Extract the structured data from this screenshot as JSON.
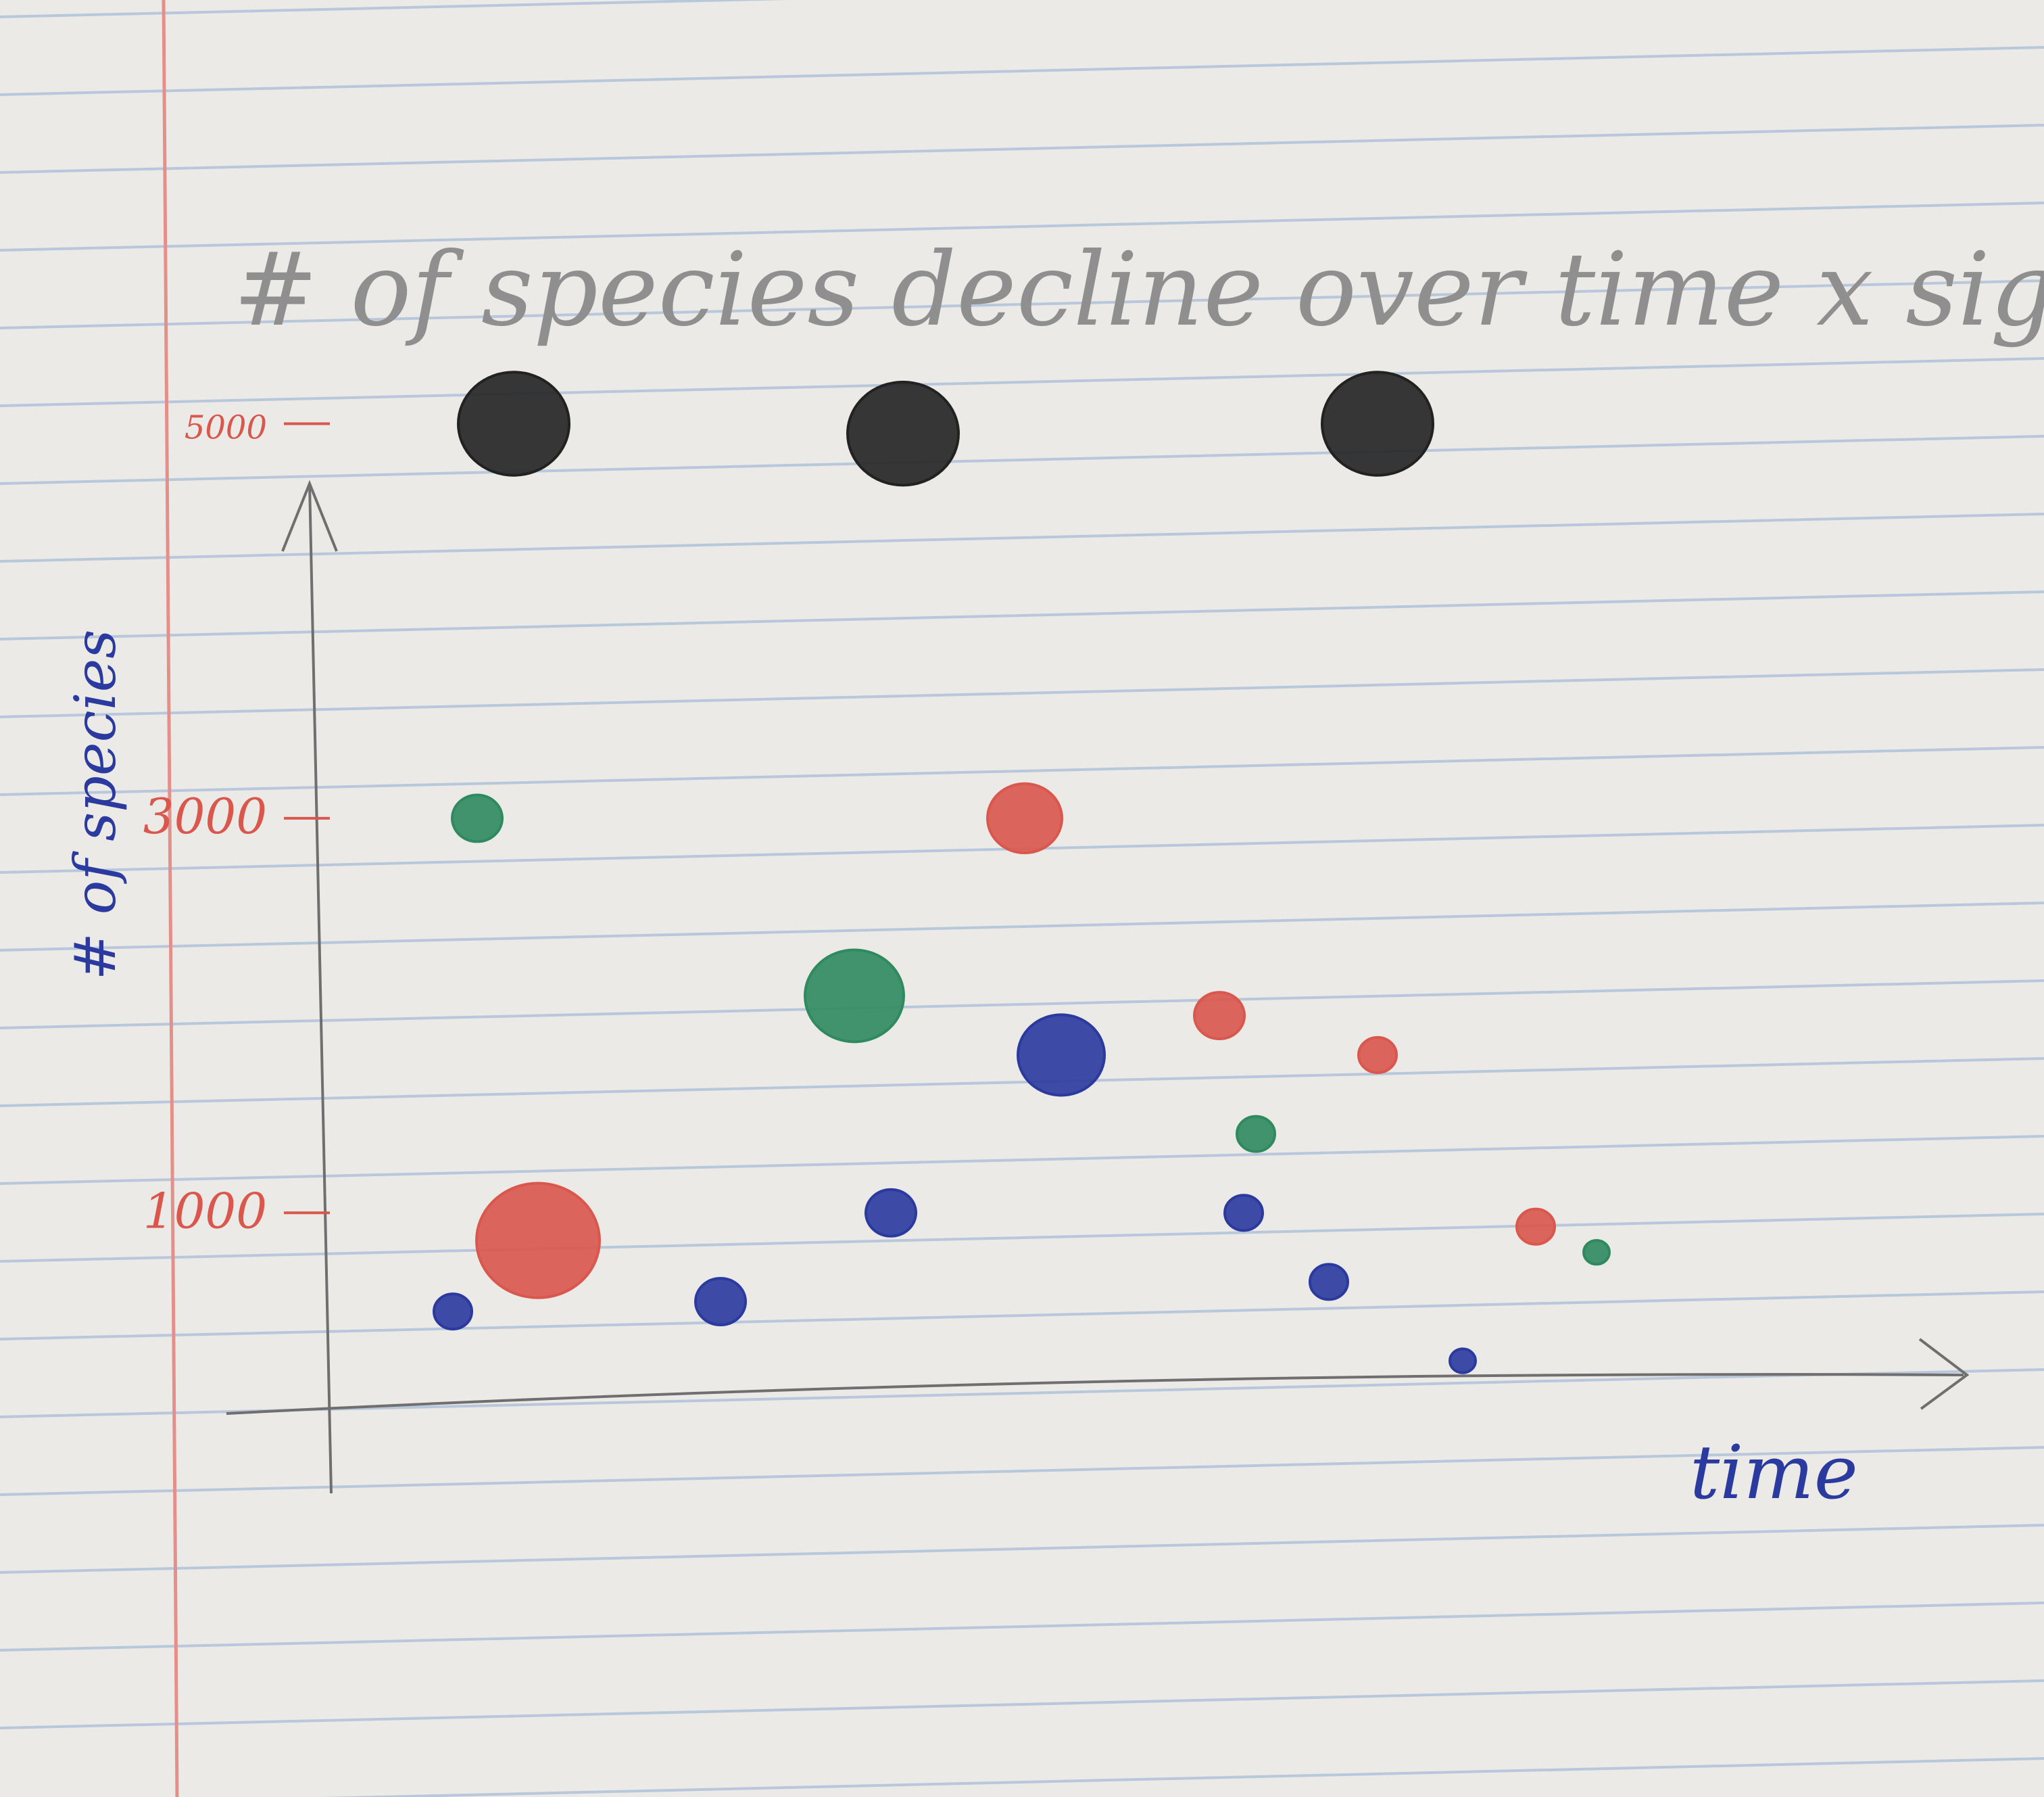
{
  "colors": {
    "paper": "#eceae6",
    "rule_line": "#b9c7dc",
    "margin_line": "#e58f8a",
    "pencil": "#8f8f8f",
    "axis": "#6f6f6f",
    "blue_ink": "#2b3a9e",
    "red_ink": "#d9574d",
    "black_ink": "#222222",
    "green_ink": "#2f8a5f"
  },
  "chart_data": {
    "type": "scatter",
    "title": "# of species decline over time x sightl",
    "xlabel": "time",
    "ylabel": "# of species",
    "ylim": [
      0,
      6000
    ],
    "yticks": [
      {
        "value": 1000,
        "label": "1000"
      },
      {
        "value": 3000,
        "label": "3000"
      },
      {
        "value": 5000,
        "label": "5000"
      }
    ],
    "series": [
      {
        "color": "black_ink",
        "points": [
          {
            "x": 1.5,
            "y": 5000,
            "size": 8
          },
          {
            "x": 4.7,
            "y": 4950,
            "size": 8
          },
          {
            "x": 8.6,
            "y": 5000,
            "size": 8
          }
        ]
      },
      {
        "color": "red_ink",
        "points": [
          {
            "x": 1.7,
            "y": 860,
            "size": 9
          },
          {
            "x": 5.7,
            "y": 3000,
            "size": 5
          },
          {
            "x": 7.3,
            "y": 2000,
            "size": 3
          },
          {
            "x": 8.6,
            "y": 1800,
            "size": 2
          },
          {
            "x": 9.9,
            "y": 930,
            "size": 2
          }
        ]
      },
      {
        "color": "green_ink",
        "points": [
          {
            "x": 1.2,
            "y": 3000,
            "size": 3
          },
          {
            "x": 4.3,
            "y": 2100,
            "size": 7
          },
          {
            "x": 7.6,
            "y": 1400,
            "size": 2
          },
          {
            "x": 10.4,
            "y": 800,
            "size": 1
          }
        ]
      },
      {
        "color": "blue_ink",
        "points": [
          {
            "x": 1.0,
            "y": 500,
            "size": 2
          },
          {
            "x": 3.2,
            "y": 550,
            "size": 3
          },
          {
            "x": 4.6,
            "y": 1000,
            "size": 3
          },
          {
            "x": 6.0,
            "y": 1800,
            "size": 6
          },
          {
            "x": 7.5,
            "y": 1000,
            "size": 2
          },
          {
            "x": 8.2,
            "y": 650,
            "size": 2
          },
          {
            "x": 9.3,
            "y": 250,
            "size": 1
          }
        ]
      }
    ]
  }
}
